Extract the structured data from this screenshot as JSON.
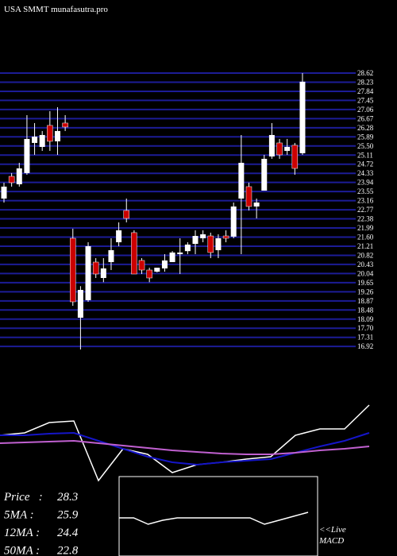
{
  "chart_data": [
    {
      "type": "candlestick",
      "title": "USA SMMT munafasutra.pro",
      "open": [
        23.25,
        24.2,
        23.86,
        24.34,
        25.63,
        25.46,
        26.38,
        25.7,
        26.48,
        21.55,
        18.15,
        18.9,
        20.53,
        19.85,
        20.53,
        21.38,
        22.74,
        21.79,
        20.6,
        20.19,
        20.12,
        20.26,
        20.53,
        20.87,
        21.0,
        21.31,
        21.55,
        21.65,
        21.04,
        21.65,
        21.62,
        23.25,
        23.76,
        22.91,
        23.59,
        25.05,
        25.63,
        25.29,
        25.53,
        25.19
      ],
      "high": [
        23.93,
        24.34,
        24.78,
        26.82,
        26.48,
        26.14,
        26.99,
        27.16,
        26.82,
        21.96,
        19.5,
        21.38,
        20.7,
        20.7,
        21.55,
        22.23,
        23.25,
        21.89,
        20.7,
        20.29,
        20.29,
        20.87,
        21.0,
        21.55,
        21.38,
        21.89,
        21.89,
        21.79,
        21.72,
        21.89,
        23.08,
        25.97,
        23.93,
        23.25,
        25.12,
        26.48,
        25.8,
        25.8,
        25.63,
        28.62
      ],
      "low": [
        23.08,
        23.76,
        23.76,
        24.27,
        25.12,
        25.29,
        25.29,
        25.12,
        26.14,
        18.66,
        16.79,
        18.83,
        19.85,
        19.67,
        20.19,
        21.21,
        22.23,
        20.02,
        20.02,
        19.67,
        20.09,
        20.12,
        20.53,
        20.02,
        20.87,
        20.87,
        21.38,
        20.7,
        20.7,
        21.38,
        21.55,
        20.87,
        22.74,
        22.4,
        23.59,
        24.95,
        24.95,
        25.12,
        24.27,
        25.12
      ],
      "close": [
        23.76,
        23.93,
        24.54,
        25.8,
        25.9,
        25.97,
        25.7,
        26.14,
        26.31,
        18.83,
        19.34,
        21.21,
        20.02,
        20.26,
        21.04,
        21.89,
        22.4,
        20.02,
        20.19,
        19.85,
        20.29,
        20.6,
        20.94,
        20.94,
        21.28,
        21.65,
        21.72,
        20.94,
        21.55,
        21.55,
        22.91,
        24.78,
        22.91,
        23.08,
        24.95,
        25.97,
        25.12,
        25.46,
        24.54,
        28.25
      ],
      "up_color": "#ffffff",
      "down_color": "#cc0000",
      "grid_color": "#1c1c96",
      "ylim": [
        16.79,
        28.62
      ],
      "yticks": [
        28.62,
        28.23,
        27.84,
        27.45,
        27.06,
        26.67,
        26.28,
        25.89,
        {
          "value": 25.5,
          "label": "25.50"
        },
        25.11,
        24.72,
        24.33,
        23.94,
        23.55,
        23.16,
        22.77,
        22.38,
        21.99,
        {
          "value": 21.6,
          "label": "21.60"
        },
        21.21,
        20.82,
        20.43,
        20.04,
        19.65,
        19.26,
        18.87,
        18.48,
        18.09,
        {
          "value": 17.7,
          "label": "17.70"
        },
        17.31,
        16.92
      ],
      "grid": true
    },
    {
      "type": "line",
      "ylim": [
        0,
        115
      ],
      "series": [
        {
          "color": "#ffffff",
          "values": [
            67,
            70,
            83,
            85,
            10,
            50,
            43,
            20,
            30,
            33,
            37,
            40,
            67,
            75,
            75,
            105
          ]
        },
        {
          "color": "#1515c8",
          "values": [
            67,
            67,
            69,
            70,
            60,
            50,
            40,
            33,
            30,
            33,
            35,
            37,
            45,
            53,
            60,
            70
          ]
        },
        {
          "color": "#c060d0",
          "values": [
            57,
            58,
            59,
            60,
            57,
            54,
            51,
            48,
            46,
            44,
            43,
            43,
            45,
            48,
            50,
            53
          ]
        }
      ],
      "stats": [
        {
          "label": "Price   :",
          "value": 28.3
        },
        {
          "label": "5MA :",
          "value": 25.9
        },
        {
          "label": "12MA :",
          "value": 24.4
        },
        {
          "label": "50MA :",
          "value": 22.8
        }
      ]
    },
    {
      "type": "line",
      "ylim": [
        0,
        100
      ],
      "title": "<<Live",
      "subtitle": "MACD",
      "series": [
        {
          "color": "#ffffff",
          "values": [
            48,
            48,
            40,
            45,
            48,
            48,
            48,
            48,
            48,
            48,
            40,
            45,
            50,
            55
          ]
        }
      ]
    }
  ]
}
